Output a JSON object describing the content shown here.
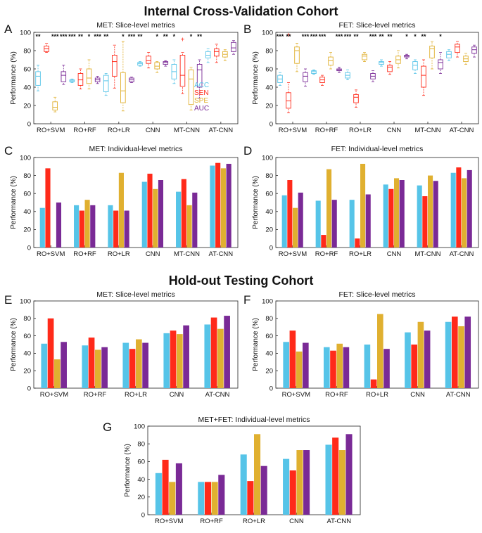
{
  "headings": {
    "internal": "Internal Cross-Validation Cohort",
    "holdout": "Hold-out Testing Cohort"
  },
  "palette": {
    "ACC": "#56c4e8",
    "SEN": "#ff2a1a",
    "SPE": "#e0b030",
    "AUC": "#7a2a96"
  },
  "legend": [
    "ACC",
    "SEN",
    "SPE",
    "AUC"
  ],
  "letters": {
    "A": "A",
    "B": "B",
    "C": "C",
    "D": "D",
    "E": "E",
    "F": "F",
    "G": "G"
  },
  "chart_data": [
    {
      "id": "A",
      "type": "box",
      "title": "MET: Slice-level metrics",
      "ylabel": "Performance (%)",
      "ylim": [
        0,
        100
      ],
      "yticks": [
        0,
        20,
        40,
        60,
        80,
        100
      ],
      "categories": [
        "RO+SVM",
        "RO+RF",
        "RO+LR",
        "CNN",
        "MT-CNN",
        "AT-CNN"
      ],
      "series_names": [
        "ACC",
        "SEN",
        "SPE",
        "AUC"
      ],
      "boxes": [
        [
          [
            36,
            42,
            52,
            57,
            64
          ],
          [
            78,
            79,
            82,
            85,
            88
          ],
          [
            13,
            15,
            18,
            24,
            29
          ],
          [
            43,
            46,
            53,
            57,
            64
          ]
        ],
        [
          [
            45,
            46,
            47,
            48,
            49
          ],
          [
            38,
            42,
            48,
            55,
            60
          ],
          [
            38,
            44,
            50,
            60,
            70
          ],
          [
            44,
            46,
            48,
            50,
            52
          ]
        ],
        [
          [
            31,
            35,
            47,
            53,
            55
          ],
          [
            39,
            52,
            68,
            75,
            86
          ],
          [
            14,
            23,
            36,
            56,
            90
          ],
          [
            45,
            46,
            48,
            50,
            51
          ]
        ],
        [
          [
            63,
            64,
            66,
            67,
            68
          ],
          [
            61,
            66,
            69,
            74,
            78
          ],
          [
            56,
            60,
            63,
            67,
            68
          ],
          [
            63,
            65,
            67,
            68,
            69
          ]
        ],
        [
          [
            44,
            49,
            57,
            65,
            70
          ],
          [
            33,
            41,
            53,
            75,
            78
          ],
          [
            15,
            21,
            49,
            59,
            62
          ],
          [
            28,
            40,
            59,
            65,
            70
          ]
        ],
        [
          [
            67,
            72,
            75,
            79,
            82
          ],
          [
            67,
            74,
            79,
            82,
            87
          ],
          [
            69,
            73,
            76,
            79,
            81
          ],
          [
            76,
            79,
            83,
            89,
            91
          ]
        ]
      ],
      "outliers": [
        [
          [],
          [],
          [],
          []
        ],
        [
          [],
          [],
          [],
          []
        ],
        [
          [],
          [],
          [],
          []
        ],
        [
          [],
          [],
          [],
          []
        ],
        [
          [],
          [
            92
          ],
          [],
          []
        ],
        [
          [],
          [],
          [],
          []
        ]
      ],
      "significance": [
        [
          "**",
          "",
          "***",
          "***"
        ],
        [
          "***",
          "**",
          "*",
          "***"
        ],
        [
          "**",
          "",
          "*",
          "***"
        ],
        [
          "**",
          "",
          "*",
          "**"
        ],
        [
          "*",
          "",
          "*",
          "**"
        ],
        [
          "",
          "",
          "",
          ""
        ]
      ],
      "legend_labels": [
        "ACC",
        "SEN",
        "SPE",
        "AUC"
      ]
    },
    {
      "id": "B",
      "type": "box",
      "title": "FET: Slice-level metrics",
      "ylabel": "Performance (%)",
      "ylim": [
        0,
        100
      ],
      "yticks": [
        0,
        20,
        40,
        60,
        80,
        100
      ],
      "categories": [
        "RO+SVM",
        "RO+RF",
        "RO+LR",
        "CNN",
        "MT-CNN",
        "AT-CNN"
      ],
      "series_names": [
        "ACC",
        "SEN",
        "SPE",
        "AUC"
      ],
      "boxes": [
        [
          [
            42,
            45,
            49,
            53,
            56
          ],
          [
            12,
            17,
            25,
            34,
            45
          ],
          [
            57,
            66,
            80,
            84,
            88
          ],
          [
            41,
            46,
            52,
            56,
            60
          ]
        ],
        [
          [
            54,
            55,
            57,
            58,
            59
          ],
          [
            42,
            45,
            48,
            51,
            53
          ],
          [
            60,
            64,
            69,
            73,
            78
          ],
          [
            56,
            58,
            59,
            60,
            62
          ]
        ],
        [
          [
            48,
            50,
            53,
            56,
            59
          ],
          [
            18,
            23,
            29,
            32,
            37
          ],
          [
            68,
            70,
            74,
            76,
            78
          ],
          [
            46,
            49,
            52,
            55,
            58
          ]
        ],
        [
          [
            63,
            65,
            67,
            68,
            70
          ],
          [
            54,
            57,
            62,
            64,
            68
          ],
          [
            61,
            66,
            70,
            74,
            80
          ],
          [
            71,
            73,
            74,
            75,
            76
          ]
        ],
        [
          [
            55,
            59,
            64,
            68,
            70
          ],
          [
            31,
            40,
            53,
            63,
            70
          ],
          [
            60,
            72,
            82,
            85,
            90
          ],
          [
            55,
            60,
            67,
            70,
            78
          ]
        ],
        [
          [
            69,
            72,
            76,
            79,
            81
          ],
          [
            73,
            78,
            84,
            87,
            90
          ],
          [
            65,
            68,
            71,
            74,
            77
          ],
          [
            73,
            77,
            81,
            84,
            86
          ]
        ]
      ],
      "outliers": [
        [
          [],
          [
            97
          ],
          [],
          []
        ],
        [
          [],
          [],
          [],
          []
        ],
        [
          [],
          [],
          [],
          []
        ],
        [
          [],
          [],
          [],
          []
        ],
        [
          [],
          [],
          [],
          []
        ],
        [
          [],
          [],
          [],
          []
        ]
      ],
      "significance": [
        [
          "***",
          "**",
          "",
          "***"
        ],
        [
          "***",
          "***",
          "",
          "***"
        ],
        [
          "***",
          "**",
          "",
          "***"
        ],
        [
          "**",
          "**",
          "",
          "*"
        ],
        [
          "*",
          "**",
          "",
          "*"
        ],
        [
          "",
          "",
          "",
          ""
        ]
      ]
    },
    {
      "id": "C",
      "type": "bar",
      "title": "MET: Individual-level metrics",
      "ylabel": "Performance (%)",
      "ylim": [
        0,
        100
      ],
      "yticks": [
        0,
        20,
        40,
        60,
        80,
        100
      ],
      "categories": [
        "RO+SVM",
        "RO+RF",
        "RO+LR",
        "CNN",
        "MT-CNN",
        "AT-CNN"
      ],
      "series": [
        {
          "name": "ACC",
          "values": [
            44,
            47,
            47,
            73,
            62,
            91
          ]
        },
        {
          "name": "SEN",
          "values": [
            88,
            41,
            41,
            82,
            76,
            94
          ]
        },
        {
          "name": "SPE",
          "values": [
            0,
            53,
            83,
            65,
            47,
            88
          ]
        },
        {
          "name": "AUC",
          "values": [
            50,
            47,
            41,
            75,
            61,
            93
          ]
        }
      ]
    },
    {
      "id": "D",
      "type": "bar",
      "title": "FET: Individual-level metrics",
      "ylabel": "Performance (%)",
      "ylim": [
        0,
        100
      ],
      "yticks": [
        0,
        20,
        40,
        60,
        80,
        100
      ],
      "categories": [
        "RO+SVM",
        "RO+RF",
        "RO+LR",
        "CNN",
        "MT-CNN",
        "AT-CNN"
      ],
      "series": [
        {
          "name": "ACC",
          "values": [
            58,
            52,
            53,
            70,
            69,
            83
          ]
        },
        {
          "name": "SEN",
          "values": [
            75,
            14,
            10,
            65,
            57,
            89
          ]
        },
        {
          "name": "SPE",
          "values": [
            44,
            87,
            93,
            77,
            80,
            77
          ]
        },
        {
          "name": "AUC",
          "values": [
            61,
            53,
            59,
            75,
            74,
            86
          ]
        }
      ]
    },
    {
      "id": "E",
      "type": "bar",
      "title": "MET: Slice-level metrics",
      "ylabel": "Performance (%)",
      "ylim": [
        0,
        100
      ],
      "yticks": [
        0,
        20,
        40,
        60,
        80,
        100
      ],
      "categories": [
        "RO+SVM",
        "RO+RF",
        "RO+LR",
        "CNN",
        "AT-CNN"
      ],
      "series": [
        {
          "name": "ACC",
          "values": [
            51,
            49,
            52,
            63,
            73
          ]
        },
        {
          "name": "SEN",
          "values": [
            80,
            58,
            45,
            66,
            81
          ]
        },
        {
          "name": "SPE",
          "values": [
            33,
            44,
            56,
            62,
            68
          ]
        },
        {
          "name": "AUC",
          "values": [
            53,
            47,
            52,
            72,
            83
          ]
        }
      ]
    },
    {
      "id": "F",
      "type": "bar",
      "title": "FET: Slice-level metrics",
      "ylabel": "Performance (%)",
      "ylim": [
        0,
        100
      ],
      "yticks": [
        0,
        20,
        40,
        60,
        80,
        100
      ],
      "categories": [
        "RO+SVM",
        "RO+RF",
        "RO+LR",
        "CNN",
        "AT-CNN"
      ],
      "series": [
        {
          "name": "ACC",
          "values": [
            53,
            47,
            50,
            64,
            76
          ]
        },
        {
          "name": "SEN",
          "values": [
            66,
            43,
            10,
            50,
            82
          ]
        },
        {
          "name": "SPE",
          "values": [
            42,
            51,
            85,
            76,
            71
          ]
        },
        {
          "name": "AUC",
          "values": [
            52,
            47,
            45,
            66,
            82
          ]
        }
      ]
    },
    {
      "id": "G",
      "type": "bar",
      "title": "MET+FET: Individual-level metrics",
      "ylabel": "Performance (%)",
      "ylim": [
        0,
        100
      ],
      "yticks": [
        0,
        20,
        40,
        60,
        80,
        100
      ],
      "categories": [
        "RO+SVM",
        "RO+RF",
        "RO+LR",
        "CNN",
        "AT-CNN"
      ],
      "series": [
        {
          "name": "ACC",
          "values": [
            47,
            37,
            68,
            63,
            79
          ]
        },
        {
          "name": "SEN",
          "values": [
            62,
            37,
            38,
            50,
            87
          ]
        },
        {
          "name": "SPE",
          "values": [
            37,
            37,
            91,
            73,
            73
          ]
        },
        {
          "name": "AUC",
          "values": [
            58,
            45,
            55,
            73,
            91
          ]
        }
      ]
    }
  ]
}
